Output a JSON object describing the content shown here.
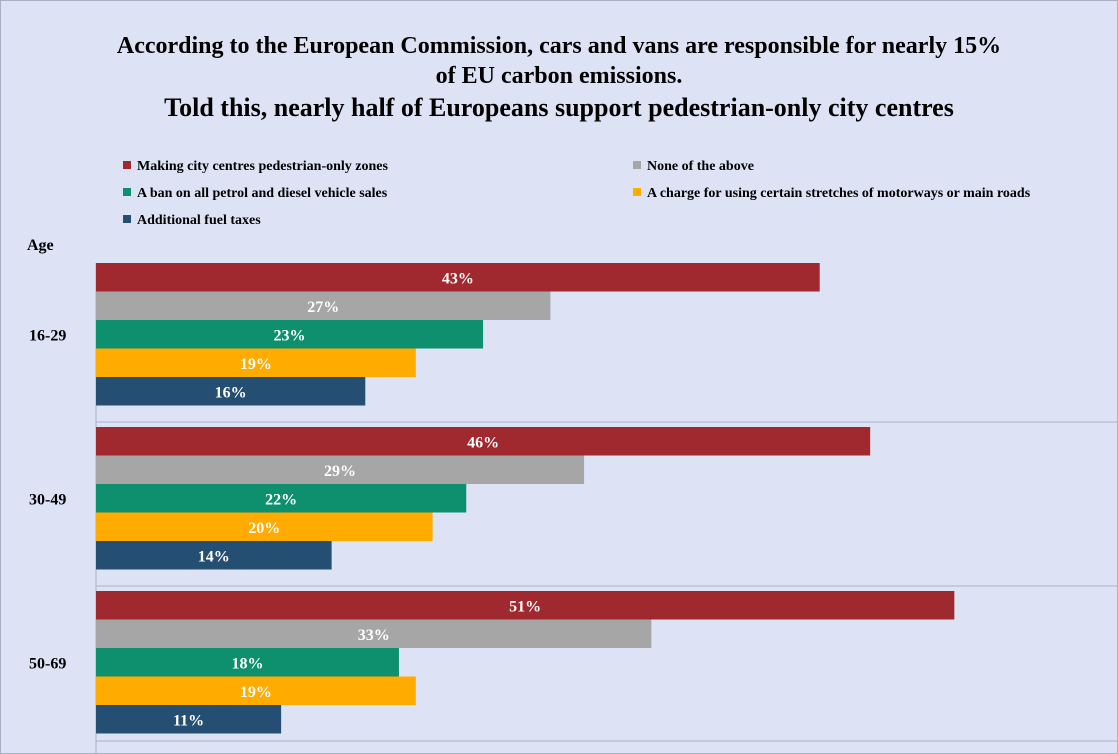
{
  "title": {
    "line1": "According to the European Commission, cars and vans are responsible for nearly 15%",
    "line2": "of EU carbon emissions.",
    "line3": "Told this, nearly half of Europeans support pedestrian-only city centres"
  },
  "chart_data": {
    "type": "bar",
    "orientation": "horizontal",
    "title": "According to the European Commission, cars and vans are responsible for nearly 15% of EU carbon emissions. Told this, nearly half of Europeans support pedestrian-only city centres",
    "ylabel": "Age",
    "categories": [
      "16-29",
      "30-49",
      "50-69"
    ],
    "xlim": [
      0,
      60
    ],
    "grid": false,
    "legend_position": "top",
    "series": [
      {
        "name": "Making city centres pedestrian-only zones",
        "color": "#a0282f",
        "values": [
          43,
          46,
          51
        ]
      },
      {
        "name": "None of the above",
        "color": "#a6a6a6",
        "values": [
          27,
          29,
          33
        ]
      },
      {
        "name": "A ban on all petrol and diesel vehicle sales",
        "color": "#0e8f6e",
        "values": [
          23,
          22,
          18
        ]
      },
      {
        "name": "A charge for using certain stretches of motorways or main roads",
        "color": "#ffab00",
        "values": [
          19,
          20,
          19
        ]
      },
      {
        "name": "Additional fuel taxes",
        "color": "#244f72",
        "values": [
          16,
          14,
          11
        ]
      }
    ],
    "value_suffix": "%"
  }
}
